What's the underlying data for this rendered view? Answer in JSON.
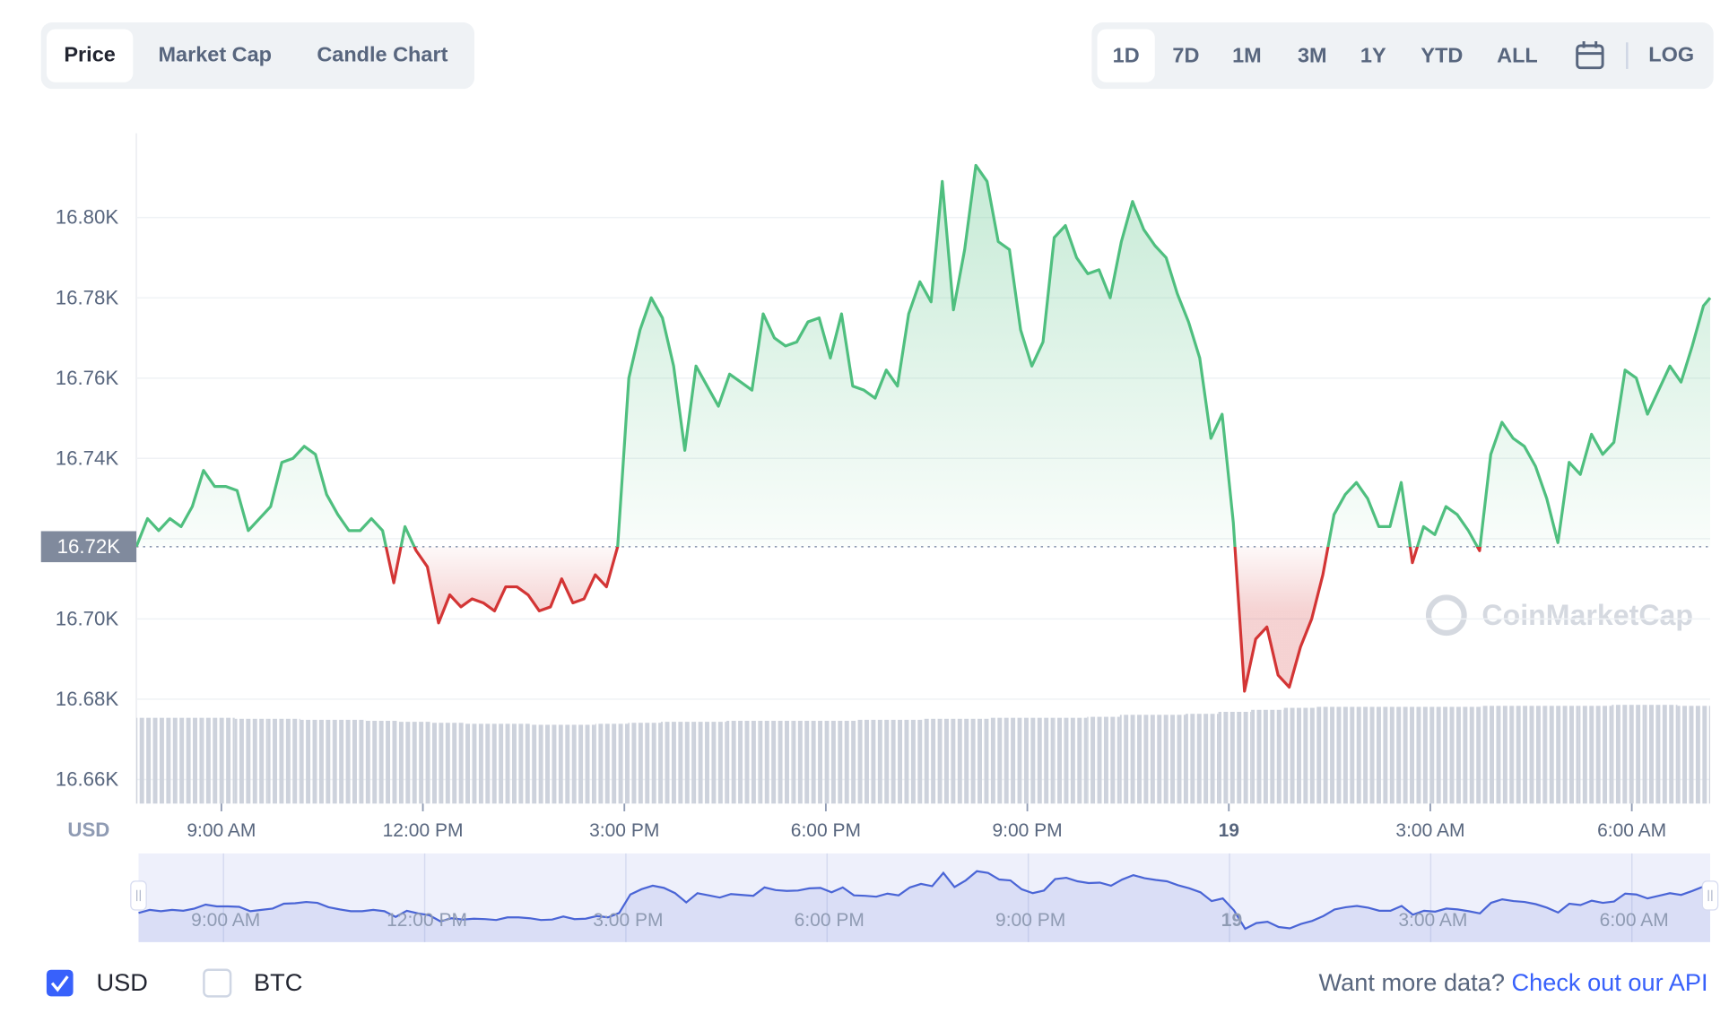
{
  "ui": {
    "tabs": [
      "Price",
      "Market Cap",
      "Candle Chart"
    ],
    "ranges": [
      "1D",
      "7D",
      "1M",
      "3M",
      "1Y",
      "YTD",
      "ALL"
    ],
    "log": "LOG",
    "currencies": [
      "USD",
      "BTC"
    ],
    "footer_text": "Want more data? ",
    "footer_link": "Check out our API",
    "watermark": "CoinMarketCap"
  },
  "chart_data": {
    "type": "line",
    "y_unit": "USD",
    "x": [
      464,
      474,
      484,
      494,
      504,
      514,
      524,
      534,
      544,
      554,
      564,
      574,
      584,
      594,
      604,
      614,
      624,
      634,
      644,
      654,
      664,
      674,
      684,
      694,
      704,
      714,
      724,
      734,
      744,
      754,
      764,
      774,
      784,
      794,
      804,
      814,
      824,
      834,
      844,
      854,
      864,
      874,
      884,
      894,
      904,
      914,
      924,
      934,
      944,
      954,
      964,
      974,
      984,
      994,
      1004,
      1014,
      1024,
      1034,
      1044,
      1054,
      1064,
      1074,
      1084,
      1094,
      1104,
      1114,
      1124,
      1134,
      1144,
      1154,
      1164,
      1174,
      1184,
      1194,
      1204,
      1214,
      1224,
      1234,
      1244,
      1254,
      1264,
      1274,
      1284,
      1294,
      1304,
      1314,
      1324,
      1334,
      1344,
      1354,
      1364,
      1374,
      1384,
      1394,
      1404,
      1414,
      1424,
      1434,
      1444,
      1454,
      1464,
      1474,
      1484,
      1494,
      1504,
      1514,
      1524,
      1534,
      1544,
      1554,
      1564,
      1574,
      1584,
      1594,
      1604,
      1614,
      1624,
      1634,
      1644,
      1654,
      1664,
      1674,
      1684,
      1694,
      1704,
      1714,
      1724,
      1734,
      1744,
      1754,
      1764,
      1774,
      1784,
      1794,
      1804,
      1814,
      1824,
      1834,
      1844,
      1854,
      1864,
      1870
    ],
    "series": [
      {
        "name": "USD",
        "up_color": "#4fbf7f",
        "down_color": "#d33535",
        "values": [
          16718,
          16725,
          16722,
          16725,
          16723,
          16728,
          16737,
          16733,
          16733,
          16732,
          16722,
          16725,
          16728,
          16739,
          16740,
          16743,
          16741,
          16731,
          16726,
          16722,
          16722,
          16725,
          16722,
          16709,
          16723,
          16717,
          16713,
          16699,
          16706,
          16703,
          16705,
          16704,
          16702,
          16708,
          16708,
          16706,
          16702,
          16703,
          16710,
          16704,
          16705,
          16711,
          16708,
          16718,
          16760,
          16772,
          16780,
          16775,
          16763,
          16742,
          16763,
          16758,
          16753,
          16761,
          16759,
          16757,
          16776,
          16770,
          16768,
          16769,
          16774,
          16775,
          16765,
          16776,
          16758,
          16757,
          16755,
          16762,
          16758,
          16776,
          16784,
          16779,
          16809,
          16777,
          16792,
          16813,
          16809,
          16794,
          16792,
          16772,
          16763,
          16769,
          16795,
          16798,
          16790,
          16786,
          16787,
          16780,
          16794,
          16804,
          16797,
          16793,
          16790,
          16781,
          16774,
          16765,
          16745,
          16751,
          16724,
          16682,
          16695,
          16698,
          16686,
          16683,
          16693,
          16700,
          16711,
          16726,
          16731,
          16734,
          16730,
          16723,
          16723,
          16734,
          16714,
          16723,
          16721,
          16728,
          16726,
          16722,
          16717,
          16741,
          16749,
          16745,
          16743,
          16738,
          16730,
          16719,
          16739,
          16736,
          16746,
          16741,
          16744,
          16762,
          16760,
          16751,
          16757,
          16763,
          16759,
          16768,
          16778,
          16780
        ]
      }
    ],
    "base": {
      "value": 16718,
      "label": "16.72K"
    },
    "volume": {
      "color": "#c9ced8",
      "ylim": [
        0,
        100
      ],
      "values": [
        86,
        86,
        86,
        85,
        85,
        84,
        84,
        83,
        82,
        81,
        80,
        80,
        79,
        79,
        80,
        81,
        82,
        82,
        83,
        83,
        83,
        83,
        84,
        84,
        85,
        85,
        86,
        86,
        86,
        87,
        89,
        89,
        90,
        92,
        94,
        96,
        97,
        97,
        97,
        97,
        97,
        98,
        98,
        98,
        98,
        99,
        99,
        98
      ]
    },
    "xlim": [
      464,
      1870
    ],
    "xticks": [
      {
        "value": 540,
        "label": "9:00 AM"
      },
      {
        "value": 720,
        "label": "12:00 PM"
      },
      {
        "value": 900,
        "label": "3:00 PM"
      },
      {
        "value": 1080,
        "label": "6:00 PM"
      },
      {
        "value": 1260,
        "label": "9:00 PM"
      },
      {
        "value": 1440,
        "label": "19"
      },
      {
        "value": 1620,
        "label": "3:00 AM"
      },
      {
        "value": 1800,
        "label": "6:00 AM"
      }
    ],
    "ylim": [
      16654,
      16821
    ],
    "yticks": [
      {
        "value": 16660,
        "label": "16.66K"
      },
      {
        "value": 16680,
        "label": "16.68K"
      },
      {
        "value": 16700,
        "label": "16.70K"
      },
      {
        "value": 16720,
        "label": "16.72K"
      },
      {
        "value": 16740,
        "label": "16.74K"
      },
      {
        "value": 16760,
        "label": "16.76K"
      },
      {
        "value": 16780,
        "label": "16.78K"
      },
      {
        "value": 16800,
        "label": "16.80K"
      }
    ],
    "grid": true,
    "navigator_color": "#4a65d6"
  }
}
